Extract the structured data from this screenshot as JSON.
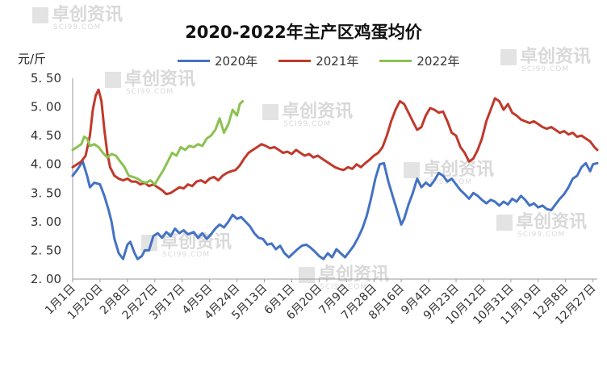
{
  "chart_data": {
    "type": "line",
    "title": "2020-2022年主产区鸡蛋均价",
    "ylabel": "元/斤",
    "ylim": [
      2.0,
      5.5
    ],
    "yticks": [
      "5. 50",
      "5. 00",
      "4. 50",
      "4. 00",
      "3. 50",
      "3. 00",
      "2. 50",
      "2. 00"
    ],
    "ytick_values": [
      5.5,
      5.0,
      4.5,
      4.0,
      3.5,
      3.0,
      2.5,
      2.0
    ],
    "x_day_range": [
      1,
      365
    ],
    "x_tick_labels": [
      "1月1日",
      "1月20日",
      "2月8日",
      "2月27日",
      "3月17日",
      "4月5日",
      "4月24日",
      "5月13日",
      "6月1日",
      "6月20日",
      "7月9日",
      "7月28日",
      "8月16日",
      "9月4日",
      "9月23日",
      "10月12日",
      "10月31日",
      "11月19日",
      "12月8日",
      "12月27日"
    ],
    "x_tick_days": [
      1,
      20,
      39,
      58,
      77,
      96,
      115,
      134,
      153,
      172,
      191,
      210,
      229,
      248,
      267,
      286,
      305,
      324,
      343,
      362
    ],
    "legend_position": "top",
    "grid": false,
    "series": [
      {
        "name": "2020年",
        "color": "#4472c4",
        "x": [
          1,
          4,
          8,
          11,
          13,
          16,
          20,
          23,
          26,
          28,
          30,
          33,
          36,
          39,
          41,
          44,
          46,
          49,
          51,
          54,
          57,
          60,
          63,
          66,
          69,
          72,
          75,
          78,
          81,
          85,
          88,
          91,
          94,
          97,
          100,
          103,
          106,
          109,
          112,
          115,
          118,
          121,
          124,
          127,
          130,
          133,
          136,
          139,
          142,
          145,
          148,
          151,
          154,
          157,
          160,
          163,
          166,
          169,
          172,
          175,
          178,
          181,
          184,
          187,
          190,
          193,
          196,
          199,
          202,
          205,
          208,
          211,
          214,
          217,
          220,
          223,
          226,
          229,
          231,
          234,
          237,
          240,
          243,
          246,
          249,
          252,
          255,
          258,
          261,
          264,
          267,
          270,
          273,
          276,
          279,
          282,
          285,
          288,
          291,
          294,
          297,
          300,
          303,
          306,
          309,
          312,
          315,
          318,
          321,
          324,
          327,
          330,
          333,
          336,
          339,
          342,
          345,
          348,
          351,
          354,
          357,
          360,
          362,
          365
        ],
        "values": [
          3.8,
          3.9,
          4.05,
          3.8,
          3.6,
          3.68,
          3.65,
          3.45,
          3.2,
          3.0,
          2.7,
          2.45,
          2.35,
          2.6,
          2.65,
          2.45,
          2.35,
          2.4,
          2.5,
          2.5,
          2.75,
          2.8,
          2.72,
          2.82,
          2.75,
          2.88,
          2.8,
          2.85,
          2.78,
          2.82,
          2.72,
          2.8,
          2.7,
          2.78,
          2.88,
          2.95,
          2.9,
          3.0,
          3.12,
          3.05,
          3.08,
          3.0,
          2.92,
          2.8,
          2.72,
          2.7,
          2.6,
          2.62,
          2.52,
          2.58,
          2.45,
          2.38,
          2.45,
          2.52,
          2.58,
          2.6,
          2.55,
          2.48,
          2.4,
          2.35,
          2.45,
          2.38,
          2.52,
          2.45,
          2.38,
          2.48,
          2.58,
          2.72,
          2.88,
          3.1,
          3.4,
          3.75,
          4.0,
          4.02,
          3.7,
          3.45,
          3.2,
          2.95,
          3.05,
          3.3,
          3.5,
          3.75,
          3.6,
          3.68,
          3.62,
          3.72,
          3.85,
          3.8,
          3.7,
          3.75,
          3.65,
          3.55,
          3.48,
          3.4,
          3.5,
          3.45,
          3.38,
          3.32,
          3.38,
          3.35,
          3.28,
          3.35,
          3.3,
          3.4,
          3.35,
          3.45,
          3.38,
          3.28,
          3.32,
          3.25,
          3.28,
          3.22,
          3.2,
          3.3,
          3.4,
          3.48,
          3.6,
          3.75,
          3.8,
          3.95,
          4.02,
          3.88,
          4.0,
          4.02
        ]
      },
      {
        "name": "2021年",
        "color": "#c0392b",
        "x": [
          1,
          4,
          7,
          10,
          13,
          15,
          17,
          19,
          21,
          23,
          25,
          27,
          30,
          33,
          36,
          39,
          42,
          45,
          48,
          51,
          54,
          57,
          60,
          63,
          66,
          69,
          72,
          75,
          78,
          81,
          84,
          87,
          90,
          93,
          96,
          99,
          102,
          105,
          108,
          111,
          114,
          117,
          120,
          123,
          126,
          129,
          132,
          135,
          138,
          141,
          144,
          147,
          150,
          153,
          156,
          159,
          162,
          165,
          168,
          171,
          174,
          177,
          180,
          183,
          186,
          189,
          192,
          195,
          198,
          201,
          204,
          207,
          210,
          213,
          216,
          219,
          222,
          225,
          228,
          231,
          234,
          237,
          240,
          243,
          246,
          249,
          252,
          255,
          258,
          261,
          264,
          267,
          270,
          273,
          276,
          279,
          282,
          285,
          288,
          291,
          294,
          297,
          300,
          303,
          306,
          309,
          312,
          315,
          318,
          321,
          324,
          327,
          330,
          333,
          336,
          339,
          342,
          345,
          348,
          351,
          354,
          357,
          360,
          363,
          365
        ],
        "values": [
          3.95,
          4.0,
          4.05,
          4.15,
          4.5,
          4.95,
          5.2,
          5.3,
          5.1,
          4.6,
          4.2,
          3.95,
          3.8,
          3.75,
          3.72,
          3.75,
          3.7,
          3.7,
          3.65,
          3.68,
          3.62,
          3.65,
          3.6,
          3.55,
          3.48,
          3.5,
          3.55,
          3.6,
          3.58,
          3.65,
          3.62,
          3.7,
          3.72,
          3.68,
          3.75,
          3.78,
          3.72,
          3.8,
          3.85,
          3.88,
          3.9,
          3.98,
          4.1,
          4.2,
          4.25,
          4.3,
          4.35,
          4.32,
          4.28,
          4.3,
          4.25,
          4.2,
          4.22,
          4.18,
          4.25,
          4.2,
          4.15,
          4.18,
          4.12,
          4.15,
          4.1,
          4.05,
          4.0,
          3.95,
          3.92,
          3.9,
          3.95,
          3.92,
          4.0,
          3.95,
          4.02,
          4.08,
          4.15,
          4.2,
          4.3,
          4.5,
          4.75,
          4.95,
          5.1,
          5.05,
          4.9,
          4.75,
          4.6,
          4.65,
          4.85,
          4.98,
          4.95,
          4.9,
          4.92,
          4.75,
          4.55,
          4.5,
          4.3,
          4.2,
          4.05,
          4.1,
          4.25,
          4.45,
          4.75,
          4.95,
          5.15,
          5.1,
          4.95,
          5.05,
          4.9,
          4.85,
          4.78,
          4.75,
          4.72,
          4.75,
          4.7,
          4.65,
          4.62,
          4.65,
          4.6,
          4.55,
          4.58,
          4.52,
          4.55,
          4.48,
          4.5,
          4.45,
          4.4,
          4.3,
          4.25
        ]
      },
      {
        "name": "2022年",
        "color": "#8cc152",
        "x": [
          1,
          4,
          7,
          9,
          11,
          13,
          16,
          19,
          22,
          25,
          28,
          31,
          34,
          37,
          40,
          43,
          46,
          49,
          52,
          55,
          58,
          61,
          64,
          67,
          70,
          73,
          76,
          79,
          82,
          85,
          88,
          91,
          94,
          97,
          100,
          103,
          106,
          109,
          112,
          115,
          117,
          119
        ],
        "values": [
          4.25,
          4.3,
          4.35,
          4.48,
          4.45,
          4.32,
          4.35,
          4.3,
          4.2,
          4.12,
          4.18,
          4.15,
          4.05,
          3.95,
          3.8,
          3.78,
          3.75,
          3.7,
          3.68,
          3.72,
          3.65,
          3.78,
          3.9,
          4.05,
          4.2,
          4.15,
          4.3,
          4.25,
          4.32,
          4.3,
          4.35,
          4.32,
          4.45,
          4.5,
          4.6,
          4.8,
          4.55,
          4.7,
          4.95,
          4.85,
          5.05,
          5.1
        ]
      }
    ]
  }
}
